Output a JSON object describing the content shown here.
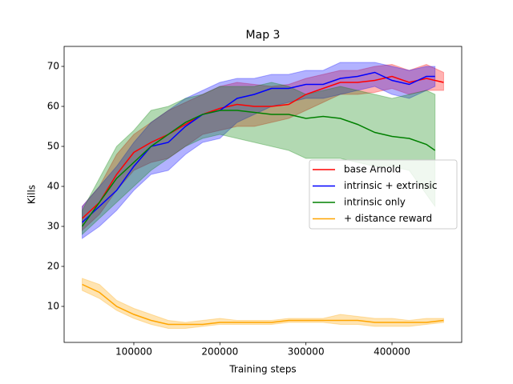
{
  "chart_data": {
    "type": "line",
    "title": "Map 3",
    "x_label": "Training steps",
    "y_label": "Kills",
    "xlim": [
      19000,
      481000
    ],
    "ylim": [
      1,
      75
    ],
    "xticks": [
      100000,
      200000,
      300000,
      400000
    ],
    "yticks": [
      10,
      20,
      30,
      40,
      50,
      60,
      70
    ],
    "legend": "center right",
    "series": [
      {
        "name": "base Arnold",
        "color": "#ff0000",
        "x": [
          40000,
          60000,
          80000,
          100000,
          120000,
          140000,
          160000,
          180000,
          200000,
          220000,
          240000,
          260000,
          280000,
          300000,
          320000,
          340000,
          360000,
          380000,
          400000,
          420000,
          440000,
          460000
        ],
        "values": [
          32,
          36,
          43,
          48.5,
          51,
          53,
          55.5,
          58,
          59.5,
          60.5,
          60,
          60,
          60.5,
          63,
          64.5,
          66,
          66,
          66.5,
          67.5,
          66,
          67,
          66
        ],
        "lower": [
          29,
          33,
          39,
          44,
          46,
          47,
          50,
          53,
          54,
          55,
          55,
          56,
          57,
          59,
          61,
          63,
          63,
          63.5,
          64.5,
          63,
          64,
          64
        ],
        "upper": [
          35,
          40,
          48,
          53,
          56,
          59,
          61,
          63,
          65,
          66,
          65.5,
          65,
          65.5,
          67,
          68,
          69,
          69,
          70,
          70.5,
          69,
          70.5,
          68.5
        ]
      },
      {
        "name": "intrinsic + extrinsic",
        "color": "#0000ff",
        "x": [
          40000,
          60000,
          80000,
          100000,
          120000,
          140000,
          160000,
          180000,
          200000,
          220000,
          240000,
          260000,
          280000,
          300000,
          320000,
          340000,
          360000,
          380000,
          400000,
          420000,
          440000,
          450000
        ],
        "values": [
          31,
          35,
          39,
          45,
          50,
          51,
          55,
          58,
          59,
          62,
          63,
          64.5,
          64.5,
          65.5,
          65.5,
          67,
          67.5,
          68.5,
          66.5,
          65.5,
          67.5,
          67.5
        ],
        "lower": [
          27,
          30,
          34,
          39,
          43,
          44,
          48,
          51,
          52,
          56,
          58,
          60,
          61,
          62,
          62,
          63,
          64,
          65,
          63,
          62,
          64,
          65
        ],
        "upper": [
          35,
          40,
          45,
          51,
          56,
          59,
          62,
          64,
          66,
          67,
          67,
          68,
          68,
          69,
          69,
          71,
          71,
          71,
          70,
          69,
          70,
          70
        ]
      },
      {
        "name": "intrinsic only",
        "color": "#008000",
        "x": [
          40000,
          60000,
          80000,
          100000,
          120000,
          140000,
          160000,
          180000,
          200000,
          220000,
          240000,
          260000,
          280000,
          300000,
          320000,
          340000,
          360000,
          380000,
          400000,
          420000,
          440000,
          450000
        ],
        "values": [
          30,
          36,
          42,
          46,
          50,
          53,
          56,
          58,
          59,
          59,
          58.5,
          58,
          58,
          57,
          57.5,
          57,
          55.5,
          53.5,
          52.5,
          52,
          50.5,
          49
        ],
        "lower": [
          28,
          32,
          36,
          40,
          44,
          47,
          50,
          52,
          53,
          52,
          51,
          50,
          49,
          47,
          47,
          47,
          46,
          45,
          45,
          44,
          38,
          35
        ],
        "upper": [
          34,
          42,
          50,
          54,
          59,
          60,
          62,
          63,
          65,
          65,
          65,
          66,
          65,
          63,
          64,
          65,
          64,
          63,
          62,
          63,
          64,
          63
        ]
      },
      {
        "name": "+ distance reward",
        "color": "#ffa500",
        "x": [
          40000,
          60000,
          80000,
          100000,
          120000,
          140000,
          160000,
          180000,
          200000,
          220000,
          240000,
          260000,
          280000,
          300000,
          320000,
          340000,
          360000,
          380000,
          400000,
          420000,
          440000,
          460000
        ],
        "values": [
          15.5,
          13.5,
          10,
          8,
          6.5,
          5.5,
          5.5,
          5.5,
          6,
          6,
          6,
          6,
          6.5,
          6.5,
          6.5,
          6.5,
          6.5,
          6,
          6,
          6,
          6,
          6.5
        ],
        "lower": [
          14,
          12,
          9,
          7,
          5.5,
          4.5,
          4.5,
          5,
          5.5,
          5.5,
          5.5,
          5.5,
          6,
          6,
          6,
          5.5,
          5.5,
          5,
          5,
          5,
          5.5,
          6
        ],
        "upper": [
          17,
          15.5,
          11.5,
          9.5,
          8,
          6.5,
          6,
          6.5,
          7,
          6.5,
          6.5,
          6.5,
          7,
          7,
          7,
          8,
          7.5,
          7,
          7,
          6.5,
          7,
          7
        ]
      }
    ]
  }
}
